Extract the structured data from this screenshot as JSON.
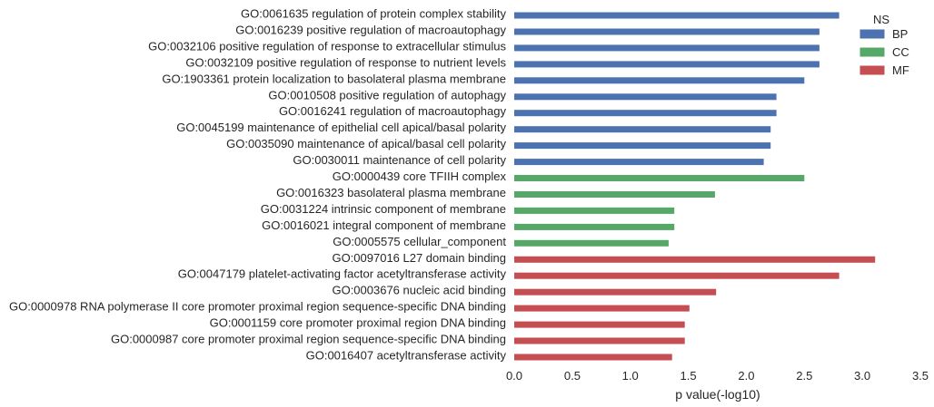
{
  "chart_data": {
    "type": "bar",
    "orientation": "horizontal",
    "xlabel": "p value(-log10)",
    "xlim": [
      0,
      3.5
    ],
    "xticks": [
      "0.0",
      "0.5",
      "1.0",
      "1.5",
      "2.0",
      "2.5",
      "3.0",
      "3.5"
    ],
    "grid": false,
    "legend": {
      "title": "NS",
      "placement": "top-right",
      "entries": [
        {
          "name": "BP",
          "color": "#4C72B0"
        },
        {
          "name": "CC",
          "color": "#55A868"
        },
        {
          "name": "MF",
          "color": "#C44E52"
        }
      ]
    },
    "categories": [
      "GO:0061635 regulation of protein complex stability",
      "GO:0016239 positive regulation of macroautophagy",
      "GO:0032106 positive regulation of response to extracellular stimulus",
      "GO:0032109 positive regulation of response to nutrient levels",
      "GO:1903361 protein localization to basolateral plasma membrane",
      "GO:0010508 positive regulation of autophagy",
      "GO:0016241 regulation of macroautophagy",
      "GO:0045199 maintenance of epithelial cell apical/basal polarity",
      "GO:0035090 maintenance of apical/basal cell polarity",
      "GO:0030011 maintenance of cell polarity",
      "GO:0000439 core TFIIH complex",
      "GO:0016323 basolateral plasma membrane",
      "GO:0031224 intrinsic component of membrane",
      "GO:0016021 integral component of membrane",
      "GO:0005575 cellular_component",
      "GO:0097016 L27 domain binding",
      "GO:0047179 platelet-activating factor acetyltransferase activity",
      "GO:0003676 nucleic acid binding",
      "GO:0000978 RNA polymerase II core promoter proximal region sequence-specific DNA binding",
      "GO:0001159 core promoter proximal region DNA binding",
      "GO:0000987 core promoter proximal region sequence-specific DNA binding",
      "GO:0016407 acetyltransferase activity"
    ],
    "values": [
      2.8,
      2.63,
      2.63,
      2.63,
      2.5,
      2.26,
      2.26,
      2.21,
      2.21,
      2.15,
      2.5,
      1.73,
      1.38,
      1.38,
      1.33,
      3.11,
      2.8,
      1.74,
      1.51,
      1.47,
      1.47,
      1.36
    ],
    "groups": [
      "BP",
      "BP",
      "BP",
      "BP",
      "BP",
      "BP",
      "BP",
      "BP",
      "BP",
      "BP",
      "CC",
      "CC",
      "CC",
      "CC",
      "CC",
      "MF",
      "MF",
      "MF",
      "MF",
      "MF",
      "MF",
      "MF"
    ]
  }
}
